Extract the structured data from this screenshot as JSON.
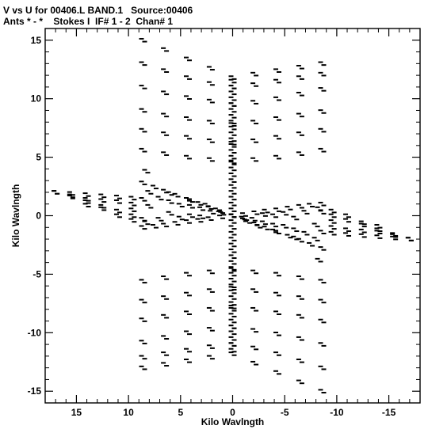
{
  "header": {
    "line1": "V vs U for 00406.L BAND.1   Source:00406",
    "line2": "Ants * - *    Stokes I  IF# 1 - 2  Chan# 1"
  },
  "chart_data": {
    "type": "scatter",
    "title": "V vs U for 00406.L BAND.1   Source:00406",
    "subtitle": "Ants * - *    Stokes I  IF# 1 - 2  Chan# 1",
    "xlabel": "Kilo Wavlngth",
    "ylabel": "Kilo Wavlngth",
    "xlim": [
      18,
      -18
    ],
    "ylim": [
      -16,
      16
    ],
    "x_reversed": true,
    "xticks": [
      15,
      10,
      5,
      0,
      -5,
      -10,
      -15
    ],
    "xtick_labels": [
      "15",
      "10",
      "5",
      "0",
      "-5",
      "-10",
      "-15"
    ],
    "yticks": [
      15,
      10,
      5,
      0,
      -5,
      -10,
      -15
    ],
    "ytick_labels": [
      "15",
      "10",
      "5",
      "0",
      "-5",
      "-10",
      "-15"
    ],
    "grid": false,
    "marker_color": "#000000",
    "series": [
      {
        "x": [
          8.6,
          6.5,
          4.3,
          2.1,
          0.0,
          -2.1,
          -4.3,
          -6.5,
          -8.6
        ],
        "y": [
          15.0,
          14.2,
          13.4,
          12.6,
          11.8,
          12.1,
          12.4,
          12.7,
          13.0
        ]
      },
      {
        "x": [
          8.6,
          6.5,
          4.3,
          2.1,
          0.0,
          -2.1,
          -4.3,
          -6.5,
          -8.6
        ],
        "y": [
          13.0,
          12.4,
          11.8,
          11.3,
          11.0,
          11.2,
          11.5,
          11.8,
          12.1
        ]
      },
      {
        "x": [
          8.6,
          6.5,
          4.3,
          2.1,
          0.0,
          -2.1,
          -4.3,
          -6.5,
          -8.6
        ],
        "y": [
          11.0,
          10.5,
          10.1,
          9.8,
          9.5,
          9.7,
          10.0,
          10.4,
          10.8
        ]
      },
      {
        "x": [
          8.6,
          6.5,
          4.3,
          2.1,
          0.0,
          -2.1,
          -4.3,
          -6.5,
          -8.6
        ],
        "y": [
          9.0,
          8.6,
          8.3,
          8.0,
          7.8,
          8.0,
          8.3,
          8.6,
          8.9
        ]
      },
      {
        "x": [
          8.6,
          6.5,
          4.3,
          2.1,
          0.0,
          -2.1,
          -4.3,
          -6.5,
          -8.6
        ],
        "y": [
          7.3,
          7.0,
          6.7,
          6.4,
          6.2,
          6.4,
          6.7,
          7.0,
          7.3
        ]
      },
      {
        "x": [
          8.6,
          6.5,
          4.3,
          2.1,
          0.0,
          -2.1,
          -4.3,
          -6.5,
          -8.6
        ],
        "y": [
          5.6,
          5.3,
          5.0,
          4.8,
          4.6,
          4.8,
          5.0,
          5.3,
          5.6
        ]
      },
      {
        "x": [
          8.6,
          6.5,
          4.3,
          2.1,
          0.0,
          -2.1,
          -4.3,
          -6.5,
          -8.6
        ],
        "y": [
          -5.6,
          -5.3,
          -5.0,
          -4.8,
          -4.6,
          -4.8,
          -5.0,
          -5.3,
          -5.6
        ]
      },
      {
        "x": [
          8.6,
          6.5,
          4.3,
          2.1,
          0.0,
          -2.1,
          -4.3,
          -6.5,
          -8.6
        ],
        "y": [
          -7.3,
          -7.0,
          -6.7,
          -6.4,
          -6.2,
          -6.4,
          -6.7,
          -7.0,
          -7.3
        ]
      },
      {
        "x": [
          8.6,
          6.5,
          4.3,
          2.1,
          0.0,
          -2.1,
          -4.3,
          -6.5,
          -8.6
        ],
        "y": [
          -8.9,
          -8.6,
          -8.3,
          -8.0,
          -7.8,
          -8.0,
          -8.3,
          -8.6,
          -9.0
        ]
      },
      {
        "x": [
          8.6,
          6.5,
          4.3,
          2.1,
          0.0,
          -2.1,
          -4.3,
          -6.5,
          -8.6
        ],
        "y": [
          -10.8,
          -10.4,
          -10.0,
          -9.7,
          -9.5,
          -9.8,
          -10.1,
          -10.5,
          -11.0
        ]
      },
      {
        "x": [
          8.6,
          6.5,
          4.3,
          2.1,
          0.0,
          -2.1,
          -4.3,
          -6.5,
          -8.6
        ],
        "y": [
          -12.1,
          -11.8,
          -11.5,
          -11.2,
          -11.0,
          -11.3,
          -11.8,
          -12.4,
          -13.0
        ]
      },
      {
        "x": [
          8.6,
          6.5,
          4.3,
          2.1,
          0.0,
          -2.1,
          -4.3,
          -6.5,
          -8.6
        ],
        "y": [
          -13.0,
          -12.7,
          -12.4,
          -12.1,
          -11.8,
          -12.6,
          -13.4,
          -14.2,
          -15.0
        ]
      },
      {
        "x": [
          0,
          0,
          0,
          0,
          0,
          0,
          0,
          0,
          0,
          0,
          0,
          0,
          0,
          0,
          0,
          0,
          0,
          0,
          0,
          0,
          0,
          0,
          0,
          0,
          0,
          0,
          0,
          0,
          0,
          0,
          0,
          0,
          0,
          0,
          0,
          0,
          0,
          0,
          0,
          0,
          0,
          0,
          0,
          0,
          0,
          0,
          0
        ],
        "y": [
          11.5,
          11,
          10.5,
          10,
          9.5,
          9,
          8.5,
          8,
          7.5,
          7,
          6.5,
          6,
          5.5,
          5,
          4.5,
          4,
          3.5,
          3,
          2.5,
          2,
          1.5,
          1,
          0.5,
          0,
          -0.5,
          -1,
          -1.5,
          -2,
          -2.5,
          -3,
          -3.5,
          -4,
          -4.5,
          -5,
          -5.5,
          -6,
          -6.5,
          -7,
          -7.5,
          -8,
          -8.5,
          -9,
          -9.5,
          -10,
          -10.5,
          -11,
          -11.5
        ]
      },
      {
        "x": [
          8.6,
          7.5,
          6.5,
          5.4,
          4.3,
          3.2,
          2.2,
          1.1,
          0.0
        ],
        "y": [
          2.8,
          2.45,
          2.1,
          1.75,
          1.4,
          1.05,
          0.7,
          0.35,
          0.0
        ]
      },
      {
        "x": [
          8.6,
          7.5,
          6.5,
          5.4,
          4.3,
          3.2,
          2.2,
          1.1,
          0.0
        ],
        "y": [
          -1.0,
          -0.9,
          -0.8,
          -0.65,
          -0.5,
          -0.4,
          -0.25,
          -0.1,
          0.0
        ]
      },
      {
        "x": [
          0.0,
          -1.1,
          -2.2,
          -3.2,
          -4.3,
          -5.4,
          -6.5,
          -7.5,
          -8.6
        ],
        "y": [
          0.0,
          0.1,
          0.25,
          0.4,
          0.5,
          0.65,
          0.8,
          0.9,
          1.0
        ]
      },
      {
        "x": [
          0.0,
          -1.1,
          -2.2,
          -3.2,
          -4.3,
          -5.4,
          -6.5,
          -7.5,
          -8.6
        ],
        "y": [
          0.0,
          -0.35,
          -0.7,
          -1.05,
          -1.4,
          -1.75,
          -2.1,
          -2.45,
          -2.8
        ]
      },
      {
        "x": [
          17.0,
          15.5,
          14.0,
          12.5,
          11.0,
          9.6,
          8.6
        ],
        "y": [
          2.0,
          1.9,
          1.8,
          1.7,
          1.6,
          1.5,
          1.4
        ]
      },
      {
        "x": [
          17.0,
          15.5,
          14.0,
          12.5,
          11.0,
          9.6,
          8.6
        ],
        "y": [
          2.0,
          1.6,
          1.2,
          0.8,
          0.4,
          0.0,
          -0.3
        ]
      },
      {
        "x": [
          -8.6,
          -9.6,
          -11.0,
          -12.5,
          -14.0,
          -15.5,
          -17.0
        ],
        "y": [
          -1.4,
          -1.5,
          -1.6,
          -1.7,
          -1.8,
          -1.9,
          -2.0
        ]
      },
      {
        "x": [
          -8.6,
          -9.6,
          -11.0,
          -12.5,
          -14.0,
          -15.5,
          -17.0
        ],
        "y": [
          0.3,
          0.0,
          -0.4,
          -0.8,
          -1.2,
          -1.6,
          -2.0
        ]
      },
      {
        "x": [
          8.0,
          8.0,
          6.0,
          6.0,
          4.0,
          4.0,
          2.0,
          7.0,
          7.0,
          5.0,
          5.0,
          3.0,
          3.0,
          1.0,
          8.3,
          8.3,
          6.0,
          4.0,
          2.5,
          1.5,
          9.6,
          9.6,
          9.6,
          11.0,
          11.0,
          12.5,
          12.5,
          14.0,
          14.0,
          15.5
        ],
        "y": [
          2.0,
          0.8,
          1.2,
          0.2,
          0.8,
          0.0,
          0.3,
          1.5,
          -0.3,
          0.9,
          -0.2,
          0.6,
          -0.1,
          0.2,
          3.8,
          -0.6,
          1.9,
          1.3,
          0.9,
          0.5,
          1.0,
          0.5,
          -0.4,
          1.2,
          0.0,
          1.3,
          0.6,
          1.4,
          0.9,
          1.7
        ]
      },
      {
        "x": [
          -8.0,
          -8.0,
          -6.0,
          -6.0,
          -4.0,
          -4.0,
          -2.0,
          -7.0,
          -7.0,
          -5.0,
          -5.0,
          -3.0,
          -3.0,
          -1.0,
          -8.3,
          -8.3,
          -6.0,
          -4.0,
          -2.5,
          -1.5,
          -9.6,
          -9.6,
          -9.6,
          -11.0,
          -11.0,
          -12.5,
          -12.5,
          -14.0,
          -14.0,
          -15.5
        ],
        "y": [
          -2.0,
          -0.8,
          -1.2,
          -0.2,
          -0.8,
          0.0,
          -0.3,
          -1.5,
          0.3,
          -0.9,
          0.2,
          -0.6,
          0.1,
          -0.2,
          -3.8,
          0.6,
          -1.9,
          -1.3,
          -0.9,
          -0.5,
          -1.0,
          -0.5,
          0.4,
          -1.2,
          0.0,
          -1.3,
          -0.6,
          -1.4,
          -0.9,
          -1.7
        ]
      }
    ]
  }
}
